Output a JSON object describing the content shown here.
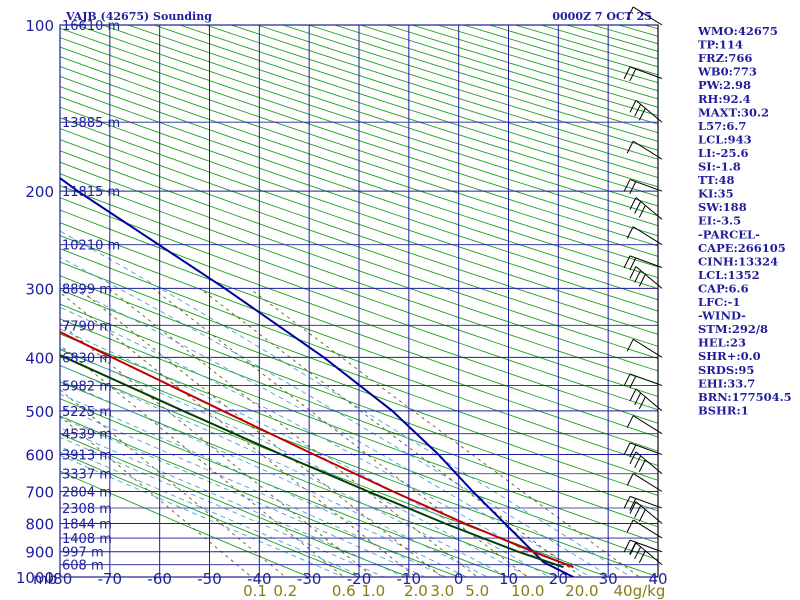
{
  "chart_data": {
    "type": "skew-t sounding",
    "title": "VAJB (42675) Sounding",
    "datetime": "0000Z  7 OCT 25",
    "pressure_axis_label": "mb",
    "pressure_ticks": [
      "100",
      "200",
      "300",
      "400",
      "500",
      "600",
      "700",
      "800",
      "900",
      "1000"
    ],
    "pressure_levels": [
      100,
      200,
      300,
      400,
      500,
      600,
      700,
      800,
      900,
      1000
    ],
    "temperature_ticks": [
      "-80",
      "-70",
      "-60",
      "-50",
      "-40",
      "-30",
      "-20",
      "-10",
      "0",
      "10",
      "20",
      "30",
      "40"
    ],
    "temperature_values": [
      -80,
      -70,
      -60,
      -50,
      -40,
      -30,
      -20,
      -10,
      0,
      10,
      20,
      30,
      40
    ],
    "temperature_range": [
      -80,
      40
    ],
    "pressure_range": [
      100,
      1000
    ],
    "height_ticks": [
      {
        "label": "16610 m",
        "p": 100
      },
      {
        "label": "13885 m",
        "p": 150
      },
      {
        "label": "11815 m",
        "p": 200
      },
      {
        "label": "10210 m",
        "p": 250
      },
      {
        "label": "8899 m",
        "p": 300
      },
      {
        "label": "7790 m",
        "p": 350
      },
      {
        "label": "6830 m",
        "p": 400
      },
      {
        "label": "5982 m",
        "p": 450
      },
      {
        "label": "5225 m",
        "p": 500
      },
      {
        "label": "4539 m",
        "p": 550
      },
      {
        "label": "3913 m",
        "p": 600
      },
      {
        "label": "3337 m",
        "p": 650
      },
      {
        "label": "2804 m",
        "p": 700
      },
      {
        "label": "2308 m",
        "p": 750
      },
      {
        "label": "1844 m",
        "p": 800
      },
      {
        "label": "1408 m",
        "p": 850
      },
      {
        "label": "997 m",
        "p": 900
      },
      {
        "label": "608 m",
        "p": 950
      }
    ],
    "mixing_ratio_ticks": [
      "0.1",
      "0.2",
      "0.6",
      "1.0",
      "2.0",
      "3.0",
      "5.0",
      "10.0",
      "20.0",
      "40g/kg"
    ],
    "mixing_ratio_values": [
      0.1,
      0.2,
      0.6,
      1.0,
      2.0,
      3.0,
      5.0,
      10.0,
      20.0,
      40.0
    ],
    "temperature_profile": [
      {
        "p": 960,
        "t": 25
      },
      {
        "p": 900,
        "t": 20
      },
      {
        "p": 800,
        "t": 12
      },
      {
        "p": 700,
        "t": 4
      },
      {
        "p": 600,
        "t": -4.5
      },
      {
        "p": 500,
        "t": -14
      },
      {
        "p": 400,
        "t": -25.5
      },
      {
        "p": 300,
        "t": -40
      },
      {
        "p": 250,
        "t": -49
      },
      {
        "p": 200,
        "t": -60
      },
      {
        "p": 150,
        "t": -73
      },
      {
        "p": 120,
        "t": -82
      },
      {
        "p": 110,
        "t": -80
      },
      {
        "p": 100,
        "t": -79
      }
    ],
    "dewpoint_profile": [
      {
        "p": 960,
        "t": 23
      },
      {
        "p": 900,
        "t": 17
      },
      {
        "p": 800,
        "t": 8
      },
      {
        "p": 700,
        "t": -1
      },
      {
        "p": 600,
        "t": -11
      },
      {
        "p": 500,
        "t": -22
      },
      {
        "p": 400,
        "t": -35
      },
      {
        "p": 300,
        "t": -50
      },
      {
        "p": 250,
        "t": -59
      },
      {
        "p": 200,
        "t": -69
      },
      {
        "p": 180,
        "t": -73
      }
    ],
    "parcel_path": [
      {
        "p": 1000,
        "t": 23
      },
      {
        "p": 940,
        "t": 20
      },
      {
        "p": 850,
        "t": 20
      },
      {
        "p": 700,
        "t": 20
      },
      {
        "p": 600,
        "t": 20.5
      },
      {
        "p": 500,
        "t": 20
      },
      {
        "p": 400,
        "t": 17
      },
      {
        "p": 300,
        "t": 11
      },
      {
        "p": 200,
        "t": 1
      },
      {
        "p": 120,
        "t": -8
      }
    ],
    "wind_barbs": [
      {
        "p": 100
      },
      {
        "p": 125
      },
      {
        "p": 150
      },
      {
        "p": 175
      },
      {
        "p": 200
      },
      {
        "p": 225
      },
      {
        "p": 250
      },
      {
        "p": 275
      },
      {
        "p": 300
      },
      {
        "p": 400
      },
      {
        "p": 450
      },
      {
        "p": 500
      },
      {
        "p": 550
      },
      {
        "p": 600
      },
      {
        "p": 650
      },
      {
        "p": 700
      },
      {
        "p": 750
      },
      {
        "p": 800
      },
      {
        "p": 850
      },
      {
        "p": 900
      },
      {
        "p": 950
      }
    ],
    "indices": [
      "WMO:42675",
      "TP:114",
      "FRZ:766",
      "WB0:773",
      "PW:2.98",
      "RH:92.4",
      "MAXT:30.2",
      "L57:6.7",
      "LCL:943",
      "LI:-25.6",
      "SI:-1.8",
      "TT:48",
      "KI:35",
      "SW:188",
      "EI:-3.5",
      "-PARCEL-",
      "CAPE:266105",
      "CINH:13324",
      "LCL:1352",
      "CAP:6.6",
      "LFC:-1",
      "-WIND-",
      "STM:292/8",
      "HEL:23",
      "SHR+:0.0",
      "SRDS:95",
      "EHI:33.7",
      "BRN:177504.5",
      "BSHR:1"
    ],
    "colors": {
      "frame": "#1e1e9a",
      "temperature": "#c00000",
      "dewpoint": "#004000",
      "parcel": "#0000a0",
      "dry_adiabat": "#20a020",
      "moist_adiabat": "#50a0e0",
      "mixing_ratio": "#6a5a10"
    }
  }
}
